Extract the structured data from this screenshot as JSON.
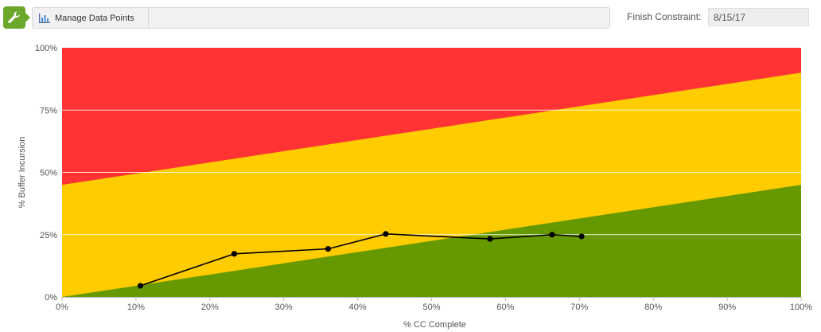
{
  "toolbar": {
    "tool_icon": "wrench-icon",
    "manage_label": "Manage Data Points",
    "manage_icon": "bar-chart-icon",
    "finish_label": "Finish Constraint:",
    "finish_value": "8/15/17"
  },
  "colors": {
    "red_zone": "#ff3333",
    "yellow_zone": "#ffcc00",
    "green_zone": "#669900",
    "line": "#000000",
    "accent": "#6aa72a"
  },
  "chart_data": {
    "type": "line",
    "title": "",
    "xlabel": "% CC Complete",
    "ylabel": "% Buffer Incursion",
    "xlim": [
      0,
      100
    ],
    "ylim": [
      0,
      100
    ],
    "x_ticks": [
      "0%",
      "10%",
      "20%",
      "30%",
      "40%",
      "50%",
      "60%",
      "70%",
      "80%",
      "90%",
      "100%"
    ],
    "y_ticks": [
      "0%",
      "25%",
      "50%",
      "75%",
      "100%"
    ],
    "zones": {
      "green_upper": {
        "x": [
          0,
          100
        ],
        "y": [
          0,
          45
        ]
      },
      "yellow_upper": {
        "x": [
          0,
          100
        ],
        "y": [
          45,
          90
        ]
      }
    },
    "series": [
      {
        "x": [
          10.6,
          23.3,
          36.0,
          43.8,
          57.9,
          66.3,
          70.3
        ],
        "y": [
          4.5,
          17.3,
          19.3,
          25.3,
          23.3,
          25.0,
          24.3
        ]
      }
    ]
  }
}
